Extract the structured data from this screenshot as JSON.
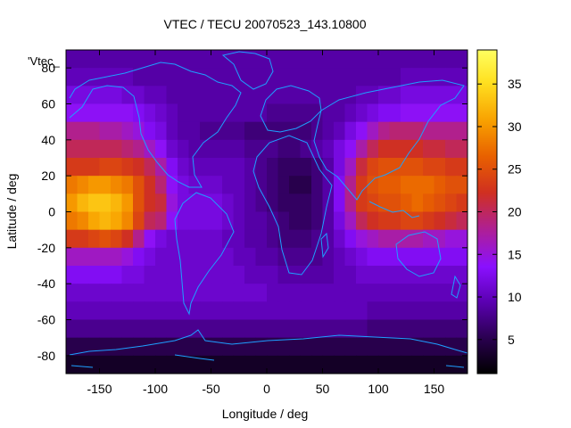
{
  "chart_data": {
    "type": "heatmap",
    "title": "VTEC / TECU 20070523_143.10800",
    "xlabel": "Longitude / deg",
    "ylabel": "Latitude / deg",
    "series_label": "'Vtec_",
    "xlim": [
      -180,
      180
    ],
    "ylim": [
      -90,
      90
    ],
    "x_ticks": [
      -150,
      -100,
      -50,
      0,
      50,
      100,
      150
    ],
    "y_ticks": [
      -80,
      -60,
      -40,
      -20,
      0,
      20,
      40,
      60,
      80
    ],
    "x_tick_labels": [
      "-150",
      "-100",
      "-50",
      "0",
      "50",
      "100",
      "150"
    ],
    "y_tick_labels": [
      "-80",
      "-60",
      "-40",
      "-20",
      "0",
      "20",
      "40",
      "60",
      "80"
    ],
    "colorbar": {
      "range": [
        1,
        39
      ],
      "ticks": [
        5,
        10,
        15,
        20,
        25,
        30,
        35
      ],
      "tick_labels": [
        "5",
        "10",
        "15",
        "20",
        "25",
        "30",
        "35"
      ],
      "colormap": [
        "#000000",
        "#2a0050",
        "#5a00b0",
        "#8a10ff",
        "#b02090",
        "#d03020",
        "#e86000",
        "#f8a000",
        "#ffe020",
        "#ffff60"
      ]
    },
    "overlay": "coastlines",
    "overlay_color": "#1ea0ff",
    "grid": false,
    "values_estimated": {
      "lon": [
        -175,
        -165,
        -155,
        -145,
        -135,
        -125,
        -115,
        -105,
        -95,
        -85,
        -75,
        -65,
        -55,
        -45,
        -35,
        -25,
        -15,
        -5,
        5,
        15,
        25,
        35,
        45,
        55,
        65,
        75,
        85,
        95,
        105,
        115,
        125,
        135,
        145,
        155,
        165,
        175
      ],
      "lat": [
        85,
        75,
        65,
        55,
        45,
        35,
        25,
        15,
        5,
        -5,
        -15,
        -25,
        -35,
        -45,
        -55,
        -65,
        -75,
        -85
      ],
      "tecu": [
        [
          9,
          9,
          9,
          9,
          9,
          9,
          9,
          9,
          9,
          9,
          9,
          9,
          9,
          9,
          9,
          9,
          9,
          9,
          9,
          9,
          9,
          9,
          9,
          9,
          9,
          9,
          9,
          9,
          9,
          9,
          9,
          9,
          9,
          9,
          9,
          9
        ],
        [
          10,
          10,
          10,
          10,
          10,
          10,
          9,
          9,
          9,
          9,
          9,
          9,
          9,
          9,
          9,
          9,
          9,
          9,
          9,
          9,
          9,
          9,
          9,
          9,
          9,
          9,
          9,
          9,
          9,
          9,
          10,
          10,
          10,
          10,
          10,
          10
        ],
        [
          12,
          12,
          12,
          12,
          12,
          11,
          11,
          10,
          10,
          9,
          9,
          9,
          9,
          9,
          9,
          9,
          9,
          9,
          9,
          9,
          9,
          9,
          9,
          9,
          9,
          9,
          10,
          10,
          11,
          11,
          12,
          12,
          12,
          12,
          12,
          12
        ],
        [
          14,
          14,
          14,
          14,
          14,
          14,
          13,
          12,
          11,
          10,
          9,
          9,
          9,
          9,
          9,
          9,
          9,
          9,
          8,
          8,
          8,
          8,
          8,
          9,
          9,
          10,
          11,
          12,
          13,
          13,
          14,
          14,
          14,
          14,
          14,
          14
        ],
        [
          18,
          18,
          18,
          17,
          17,
          16,
          15,
          13,
          12,
          10,
          9,
          9,
          8,
          8,
          8,
          8,
          7,
          7,
          7,
          7,
          7,
          7,
          8,
          9,
          10,
          12,
          14,
          16,
          18,
          19,
          19,
          19,
          18,
          18,
          18,
          18
        ],
        [
          20,
          20,
          20,
          20,
          20,
          19,
          18,
          16,
          14,
          11,
          10,
          9,
          9,
          9,
          9,
          9,
          8,
          8,
          8,
          7,
          7,
          8,
          9,
          10,
          12,
          14,
          17,
          20,
          22,
          22,
          22,
          22,
          21,
          21,
          20,
          20
        ],
        [
          23,
          23,
          23,
          24,
          24,
          23,
          22,
          20,
          17,
          13,
          11,
          10,
          10,
          10,
          10,
          10,
          9,
          8,
          7,
          6,
          6,
          6,
          7,
          9,
          12,
          16,
          21,
          24,
          25,
          25,
          25,
          25,
          24,
          24,
          23,
          23
        ],
        [
          28,
          29,
          30,
          30,
          29,
          28,
          25,
          22,
          19,
          14,
          12,
          11,
          11,
          11,
          10,
          10,
          9,
          8,
          7,
          6,
          5,
          5,
          7,
          9,
          13,
          18,
          23,
          25,
          26,
          26,
          27,
          27,
          27,
          26,
          25,
          25
        ],
        [
          30,
          32,
          33,
          33,
          32,
          30,
          25,
          22,
          21,
          15,
          12,
          12,
          12,
          12,
          11,
          10,
          9,
          8,
          7,
          6,
          6,
          6,
          7,
          9,
          13,
          18,
          23,
          24,
          25,
          25,
          26,
          27,
          26,
          25,
          24,
          23
        ],
        [
          28,
          29,
          31,
          32,
          31,
          29,
          24,
          20,
          19,
          14,
          12,
          12,
          12,
          12,
          11,
          10,
          9,
          9,
          8,
          7,
          6,
          6,
          7,
          9,
          12,
          16,
          20,
          22,
          23,
          23,
          24,
          24,
          23,
          22,
          21,
          20
        ],
        [
          23,
          23,
          24,
          25,
          24,
          22,
          18,
          14,
          12,
          11,
          11,
          11,
          11,
          11,
          10,
          10,
          9,
          9,
          8,
          7,
          7,
          7,
          8,
          9,
          11,
          13,
          15,
          16,
          17,
          17,
          17,
          17,
          16,
          16,
          15,
          15
        ],
        [
          16,
          16,
          16,
          16,
          16,
          15,
          13,
          12,
          11,
          11,
          11,
          11,
          11,
          11,
          11,
          10,
          10,
          9,
          9,
          8,
          8,
          8,
          8,
          9,
          10,
          11,
          12,
          13,
          13,
          13,
          13,
          13,
          13,
          13,
          13,
          13
        ],
        [
          13,
          13,
          13,
          13,
          13,
          12,
          12,
          11,
          11,
          11,
          11,
          11,
          11,
          11,
          11,
          11,
          10,
          10,
          10,
          9,
          9,
          9,
          9,
          9,
          10,
          10,
          11,
          11,
          11,
          11,
          11,
          11,
          11,
          11,
          11,
          11
        ],
        [
          11,
          11,
          11,
          11,
          11,
          11,
          11,
          11,
          11,
          11,
          11,
          11,
          11,
          11,
          11,
          11,
          11,
          11,
          10,
          10,
          10,
          10,
          10,
          10,
          10,
          10,
          10,
          10,
          10,
          10,
          10,
          10,
          10,
          10,
          10,
          10
        ],
        [
          10,
          10,
          10,
          10,
          10,
          10,
          10,
          10,
          10,
          10,
          10,
          10,
          10,
          10,
          10,
          10,
          10,
          10,
          10,
          10,
          10,
          10,
          10,
          10,
          10,
          10,
          10,
          9,
          9,
          9,
          9,
          9,
          9,
          9,
          9,
          9
        ],
        [
          8,
          8,
          8,
          8,
          8,
          8,
          8,
          8,
          8,
          8,
          8,
          8,
          8,
          8,
          8,
          8,
          8,
          8,
          8,
          8,
          8,
          8,
          8,
          8,
          8,
          8,
          8,
          7,
          7,
          7,
          7,
          7,
          7,
          7,
          7,
          7
        ],
        [
          5,
          5,
          5,
          5,
          5,
          5,
          5,
          5,
          5,
          5,
          5,
          5,
          5,
          5,
          5,
          5,
          5,
          5,
          5,
          5,
          5,
          5,
          5,
          5,
          5,
          5,
          5,
          5,
          5,
          5,
          5,
          5,
          5,
          5,
          5,
          5
        ],
        [
          3,
          3,
          3,
          3,
          3,
          3,
          3,
          3,
          3,
          3,
          3,
          3,
          3,
          3,
          3,
          3,
          3,
          3,
          3,
          3,
          3,
          3,
          3,
          3,
          3,
          3,
          3,
          3,
          3,
          3,
          3,
          3,
          3,
          3,
          3,
          3
        ]
      ]
    }
  }
}
